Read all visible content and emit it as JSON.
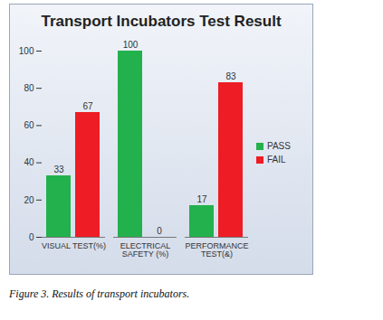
{
  "chart_data": {
    "type": "bar",
    "title": "Transport Incubators Test Result",
    "caption": "Figure 3. Results of transport incubators.",
    "categories": [
      "VISUAL TEST(%)",
      "ELECTRICAL SAFETY (%)",
      "PERFORMANCE TEST(&)"
    ],
    "series": [
      {
        "name": "PASS",
        "color": "#22b14c",
        "values": [
          33,
          100,
          17
        ]
      },
      {
        "name": "FAIL",
        "color": "#ee1c24",
        "values": [
          67,
          0,
          83
        ]
      }
    ],
    "ylim": [
      0,
      100
    ],
    "yticks": [
      0,
      20,
      40,
      60,
      80,
      100
    ],
    "grid": false,
    "legend": "right",
    "data_labels": true
  }
}
